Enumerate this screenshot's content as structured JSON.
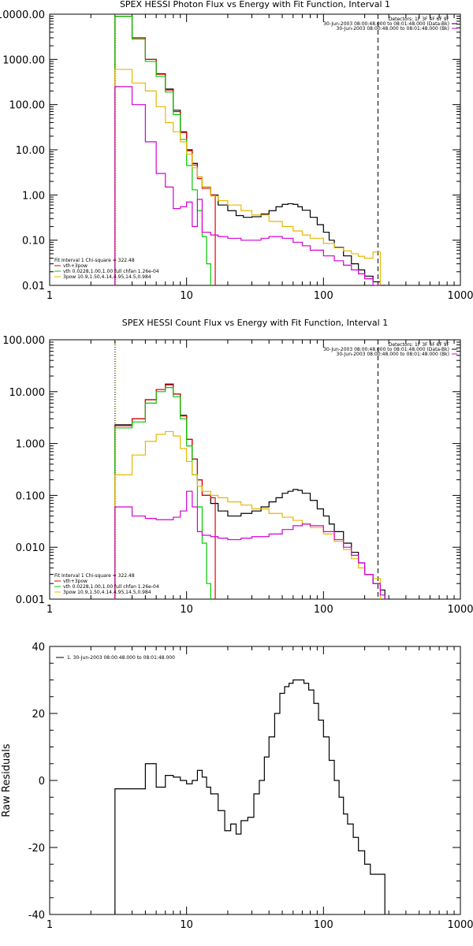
{
  "chart_data": [
    {
      "type": "line",
      "title": "SPEX HESSI Photon Flux vs Energy with Fit Function, Interval 1",
      "xscale": "log",
      "yscale": "log",
      "xlim": [
        1,
        1000
      ],
      "ylim": [
        0.01,
        10000
      ],
      "xticks": [
        "1",
        "10",
        "100",
        "1000"
      ],
      "yticks": [
        "0.01",
        "0.10",
        "1.00",
        "10.00",
        "100.00",
        "1000.00",
        "10000.00"
      ],
      "vlines": [
        {
          "x": 3,
          "style": "dotted",
          "color": "#000000"
        },
        {
          "x": 3,
          "style": "dotted",
          "color": "#e6b800"
        },
        {
          "x": 250,
          "style": "dashed",
          "color": "#000000"
        }
      ],
      "legend_top_right": [
        {
          "text": "Detectors: 1F 3F 4F 6F 9F",
          "color": ""
        },
        {
          "text": "30-Jun-2003 08:00:48.000 to 08:01:48.000 (Data-Bk)",
          "color": "#000000"
        },
        {
          "text": "30-Jun-2003 08:00:48.000 to 08:01:48.000 (Bk)",
          "color": "#d400d4"
        }
      ],
      "legend_bottom_left": [
        {
          "text": "Fit Interval 1    Chi-square = 322.48",
          "color": ""
        },
        {
          "text": "vth+3pow",
          "color": "#e60000"
        },
        {
          "text": "vth 0.0228,1.00,1.00  full chfan 1.26e-04",
          "color": "#00cc00"
        },
        {
          "text": "3pow 10.9,1.50,4.14,4.95,14.5,0.984",
          "color": "#e6b800"
        }
      ],
      "series": [
        {
          "name": "30-Jun-2003 08:00:48.000 to 08:01:48.000 (Data-Bk)",
          "color": "#000000",
          "x": [
            3.0,
            4.0,
            5.0,
            6.0,
            7.0,
            8.0,
            9.0,
            10.0,
            11.0,
            12.0,
            13.0,
            15.0,
            17.0,
            20.0,
            23.0,
            26.0,
            30.0,
            35.0,
            40.0,
            45.0,
            50.0,
            55.0,
            60.0,
            65.0,
            70.0,
            80.0,
            90.0,
            100.0,
            110.0,
            120.0,
            140.0,
            160.0,
            180.0,
            200.0,
            230.0,
            260.0
          ],
          "y": [
            9000,
            3000,
            1000,
            480,
            220,
            75,
            25,
            10,
            5.0,
            2.5,
            1.5,
            1.0,
            0.6,
            0.45,
            0.35,
            0.32,
            0.33,
            0.38,
            0.45,
            0.55,
            0.62,
            0.64,
            0.62,
            0.55,
            0.46,
            0.32,
            0.22,
            0.15,
            0.1,
            0.07,
            0.045,
            0.03,
            0.022,
            0.016,
            0.012,
            0.01
          ]
        },
        {
          "name": "vth+3pow",
          "color": "#e60000",
          "x": [
            3.0,
            4.0,
            5.0,
            6.0,
            7.0,
            8.0,
            9.0,
            10.0,
            11.0,
            12.0,
            13.0,
            15.0
          ],
          "y": [
            9000,
            3000,
            1000,
            470,
            210,
            70,
            24,
            9.5,
            4.6,
            2.3,
            1.4,
            1.0
          ]
        },
        {
          "name": "vth",
          "color": "#00cc00",
          "x": [
            3.0,
            4.0,
            5.0,
            6.0,
            7.0,
            8.0,
            9.0,
            10.0,
            11.0,
            12.0,
            13.0,
            14.0,
            15.0
          ],
          "y": [
            9000,
            2800,
            900,
            420,
            190,
            60,
            17,
            4.5,
            1.3,
            0.45,
            0.12,
            0.03,
            0.008
          ]
        },
        {
          "name": "3pow",
          "color": "#e6b800",
          "x": [
            3.0,
            4.0,
            5.0,
            6.0,
            7.0,
            8.0,
            9.0,
            10.0,
            11.0,
            12.0,
            13.0,
            15.0,
            17.0,
            20.0,
            25.0,
            30.0,
            40.0,
            50.0,
            60.0,
            70.0,
            80.0,
            100.0,
            120.0,
            140.0,
            160.0,
            180.0,
            200.0,
            230.0,
            260.0
          ],
          "y": [
            600,
            300,
            200,
            90,
            40,
            25,
            15,
            8.0,
            4.0,
            2.5,
            1.5,
            0.95,
            0.75,
            0.6,
            0.45,
            0.36,
            0.26,
            0.2,
            0.16,
            0.13,
            0.11,
            0.085,
            0.068,
            0.058,
            0.05,
            0.044,
            0.04,
            0.055,
            0.008
          ]
        },
        {
          "name": "30-Jun-2003 08:00:48.000 to 08:01:48.000 (Bk)",
          "color": "#d400d4",
          "x": [
            3.0,
            4.0,
            5.0,
            6.0,
            7.0,
            8.0,
            9.0,
            10.0,
            11.0,
            12.0,
            13.0,
            15.0,
            17.0,
            20.0,
            25.0,
            30.0,
            35.0,
            40.0,
            50.0,
            60.0,
            70.0,
            80.0,
            100.0,
            120.0,
            140.0,
            160.0,
            180.0,
            200.0,
            230.0,
            260.0
          ],
          "y": [
            250,
            100,
            15,
            3.0,
            1.5,
            0.5,
            0.55,
            0.7,
            0.2,
            0.8,
            0.15,
            0.13,
            0.12,
            0.11,
            0.1,
            0.1,
            0.11,
            0.12,
            0.11,
            0.09,
            0.075,
            0.06,
            0.045,
            0.035,
            0.028,
            0.022,
            0.018,
            0.014,
            0.01,
            0.005
          ]
        }
      ]
    },
    {
      "type": "line",
      "title": "SPEX HESSI Count Flux vs Energy with Fit Function, Interval 1",
      "xscale": "log",
      "yscale": "log",
      "xlim": [
        1,
        1000
      ],
      "ylim": [
        0.001,
        100
      ],
      "xticks": [
        "1",
        "10",
        "100",
        "1000"
      ],
      "yticks": [
        "0.001",
        "0.010",
        "0.100",
        "1.000",
        "10.000",
        "100.000"
      ],
      "vlines": [
        {
          "x": 3,
          "style": "dotted",
          "color": "#000000"
        },
        {
          "x": 3,
          "style": "dotted",
          "color": "#e6b800"
        },
        {
          "x": 250,
          "style": "dashed",
          "color": "#000000"
        }
      ],
      "legend_top_right": [
        {
          "text": "Detectors: 1F 3F 4F 6F 9F",
          "color": ""
        },
        {
          "text": "30-Jun-2003 08:00:48.000 to 08:01:48.000 (Data-Bk)",
          "color": "#000000"
        },
        {
          "text": "30-Jun-2003 08:00:48.000 to 08:01:48.000 (Bk)",
          "color": "#d400d4"
        }
      ],
      "legend_bottom_left": [
        {
          "text": "Fit Interval 1    Chi-square = 322.48",
          "color": ""
        },
        {
          "text": "vth+3pow",
          "color": "#e60000"
        },
        {
          "text": "vth 0.0228,1.00,1.00  full chfan 1.26e-04",
          "color": "#00cc00"
        },
        {
          "text": "3pow 10.9,1.50,4.14,4.95,14.5,0.984",
          "color": "#e6b800"
        }
      ],
      "series": [
        {
          "name": "30-Jun-2003 08:00:48.000 to 08:01:48.000 (Data-Bk)",
          "color": "#000000",
          "x": [
            3.0,
            4.0,
            5.0,
            6.0,
            7.0,
            8.0,
            9.0,
            10.0,
            11.0,
            12.0,
            13.0,
            15.0,
            17.0,
            20.0,
            25.0,
            30.0,
            35.0,
            40.0,
            45.0,
            50.0,
            55.0,
            60.0,
            65.0,
            70.0,
            80.0,
            90.0,
            100.0,
            110.0,
            120.0,
            140.0,
            160.0,
            180.0,
            200.0,
            230.0,
            260.0
          ],
          "y": [
            2.3,
            3.0,
            7.0,
            11.0,
            14.0,
            9.0,
            3.5,
            1.2,
            0.5,
            0.2,
            0.1,
            0.07,
            0.05,
            0.04,
            0.045,
            0.05,
            0.06,
            0.075,
            0.09,
            0.11,
            0.12,
            0.13,
            0.125,
            0.11,
            0.08,
            0.055,
            0.04,
            0.028,
            0.02,
            0.012,
            0.008,
            0.005,
            0.003,
            0.002,
            0.0015
          ]
        },
        {
          "name": "vth+3pow",
          "color": "#e60000",
          "x": [
            3.0,
            4.0,
            5.0,
            6.0,
            7.0,
            8.0,
            9.0,
            10.0,
            11.0,
            12.0,
            13.0,
            15.0
          ],
          "y": [
            2.2,
            3.0,
            7.0,
            11.0,
            13.5,
            9.0,
            3.4,
            1.2,
            0.5,
            0.2,
            0.1,
            0.09
          ]
        },
        {
          "name": "vth",
          "color": "#00cc00",
          "x": [
            3.0,
            4.0,
            5.0,
            6.0,
            7.0,
            8.0,
            9.0,
            10.0,
            11.0,
            12.0,
            13.0,
            14.0,
            15.0
          ],
          "y": [
            2.0,
            2.6,
            6.0,
            10.0,
            12.0,
            8.0,
            3.0,
            0.9,
            0.25,
            0.06,
            0.012,
            0.002,
            0.0008
          ]
        },
        {
          "name": "3pow",
          "color": "#e6b800",
          "x": [
            3.0,
            4.0,
            5.0,
            6.0,
            7.0,
            8.0,
            9.0,
            10.0,
            11.0,
            12.0,
            13.0,
            15.0,
            17.0,
            20.0,
            25.0,
            30.0,
            40.0,
            50.0,
            60.0,
            70.0,
            80.0,
            100.0,
            120.0,
            140.0,
            160.0,
            180.0,
            200.0,
            230.0,
            260.0
          ],
          "y": [
            0.25,
            0.6,
            1.1,
            1.5,
            1.7,
            1.4,
            0.8,
            0.45,
            0.25,
            0.15,
            0.12,
            0.1,
            0.09,
            0.075,
            0.065,
            0.055,
            0.045,
            0.038,
            0.033,
            0.028,
            0.024,
            0.018,
            0.013,
            0.009,
            0.006,
            0.004,
            0.003,
            0.0025,
            0.0008
          ]
        },
        {
          "name": "30-Jun-2003 08:00:48.000 to 08:01:48.000 (Bk)",
          "color": "#d400d4",
          "x": [
            3.0,
            4.0,
            5.0,
            6.0,
            7.0,
            8.0,
            9.0,
            10.0,
            11.0,
            12.0,
            13.0,
            15.0,
            17.0,
            20.0,
            25.0,
            30.0,
            40.0,
            50.0,
            60.0,
            70.0,
            80.0,
            100.0,
            120.0,
            140.0,
            160.0,
            180.0,
            200.0,
            230.0,
            260.0
          ],
          "y": [
            0.06,
            0.04,
            0.036,
            0.034,
            0.034,
            0.038,
            0.05,
            0.12,
            0.06,
            0.02,
            0.017,
            0.016,
            0.015,
            0.014,
            0.015,
            0.016,
            0.018,
            0.022,
            0.026,
            0.028,
            0.026,
            0.02,
            0.014,
            0.01,
            0.007,
            0.005,
            0.003,
            0.002,
            0.0012
          ]
        }
      ]
    },
    {
      "type": "line",
      "title": "",
      "ylabel": "Raw Residuals",
      "xscale": "log",
      "yscale": "linear",
      "xlim": [
        1,
        1000
      ],
      "ylim": [
        -40,
        40
      ],
      "xticks": [
        "1",
        "10",
        "100",
        "1000"
      ],
      "yticks": [
        "-40",
        "-20",
        "0",
        "20",
        "40"
      ],
      "legend_top_left": [
        {
          "text": "1. 30-Jun-2003 08:00:48.000 to 08:01:48.000",
          "color": "#000000"
        }
      ],
      "series": [
        {
          "name": "1. 30-Jun-2003 08:00:48.000 to 08:01:48.000",
          "color": "#000000",
          "x": [
            3.0,
            4.0,
            5.0,
            6.0,
            7.0,
            8.0,
            9.0,
            10.0,
            11.0,
            12.0,
            13.0,
            14.0,
            15.0,
            17.0,
            19.0,
            21.0,
            23.0,
            25.0,
            28.0,
            31.0,
            34.0,
            37.0,
            40.0,
            44.0,
            48.0,
            52.0,
            56.0,
            60.0,
            66.0,
            72.0,
            78.0,
            85.0,
            92.0,
            100.0,
            110.0,
            120.0,
            130.0,
            140.0,
            150.0,
            165.0,
            180.0,
            200.0,
            220.0,
            240.0,
            260.0
          ],
          "y": [
            -2.5,
            -2.5,
            5.0,
            -2.0,
            1.5,
            1.0,
            0.0,
            -1.0,
            0.0,
            3.0,
            1.0,
            -2.0,
            -4.0,
            -9.0,
            -15.0,
            -13.0,
            -16.0,
            -12.0,
            -11.0,
            -4.0,
            0.0,
            7.0,
            13.0,
            20.0,
            26.0,
            28.0,
            29.0,
            30.0,
            30.0,
            29.0,
            27.0,
            23.0,
            18.0,
            13.0,
            6.0,
            0.0,
            -5.0,
            -10.0,
            -13.0,
            -17.0,
            -21.0,
            -25.0,
            -28.0,
            -28.0,
            -28.0
          ]
        }
      ]
    }
  ]
}
